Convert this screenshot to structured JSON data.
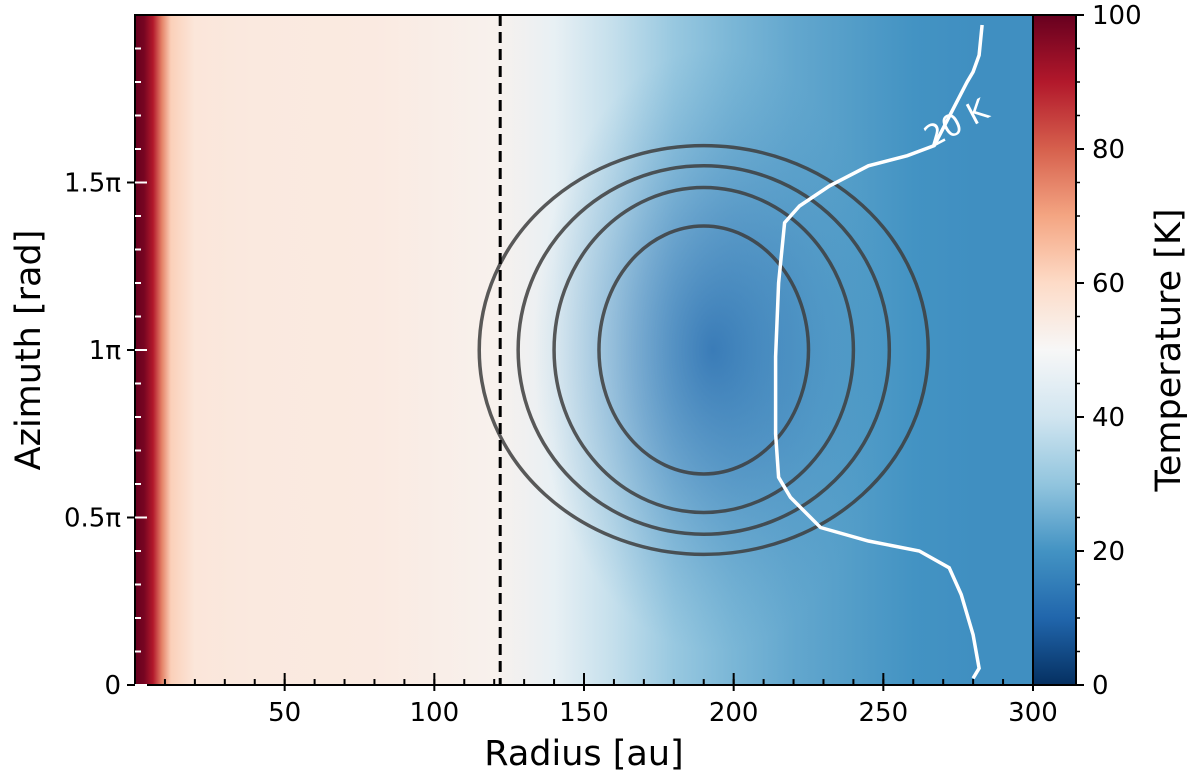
{
  "chart_data": {
    "type": "heatmap",
    "title": "",
    "xlabel": "Radius [au]",
    "ylabel": "Azimuth [rad]",
    "xlim": [
      0,
      300
    ],
    "ylim": [
      0,
      2
    ],
    "ylim_unit": "pi",
    "x_ticks": [
      {
        "value": 50,
        "label": "50"
      },
      {
        "value": 100,
        "label": "100"
      },
      {
        "value": 150,
        "label": "150"
      },
      {
        "value": 200,
        "label": "200"
      },
      {
        "value": 250,
        "label": "250"
      },
      {
        "value": 300,
        "label": "300"
      }
    ],
    "y_ticks": [
      {
        "value": 0,
        "label": "0"
      },
      {
        "value": 0.5,
        "label": "0.5π"
      },
      {
        "value": 1,
        "label": "1π"
      },
      {
        "value": 1.5,
        "label": "1.5π"
      }
    ],
    "temperature_profile": {
      "radius_au": [
        0,
        3,
        6,
        9,
        12,
        20,
        40,
        80,
        120,
        140,
        160,
        180,
        200,
        220,
        240,
        260,
        280,
        300
      ],
      "temperature_K": [
        100,
        98,
        90,
        75,
        62,
        56,
        55,
        54.5,
        52,
        46,
        38,
        31,
        27,
        24,
        22,
        20,
        19,
        19
      ]
    },
    "cold_spot": {
      "center_radius_au": 193,
      "center_azimuth_pi": 1.0,
      "depth_K": 12
    },
    "colorbar": {
      "label": "Temperature [K]",
      "range": [
        0,
        100
      ],
      "ticks": [
        0,
        20,
        40,
        60,
        80,
        100
      ],
      "colormap": "RdBu_r"
    },
    "vertical_line": {
      "x": 122,
      "style": "dashed",
      "color": "#000000"
    },
    "contours": [
      {
        "center_radius_au": 190,
        "center_azimuth_pi": 1.0,
        "radius_au": 35,
        "radius_azimuth_pi": 0.74
      },
      {
        "center_radius_au": 190,
        "center_azimuth_pi": 1.0,
        "radius_au": 50,
        "radius_azimuth_pi": 0.97
      },
      {
        "center_radius_au": 190,
        "center_azimuth_pi": 1.0,
        "radius_au": 62,
        "radius_azimuth_pi": 1.1
      },
      {
        "center_radius_au": 190,
        "center_azimuth_pi": 1.0,
        "radius_au": 75,
        "radius_azimuth_pi": 1.22
      }
    ],
    "isotherm": {
      "label": "20 K",
      "level": 20,
      "color": "#ffffff",
      "points": [
        {
          "x": 283,
          "y": 1.97
        },
        {
          "x": 282,
          "y": 1.88
        },
        {
          "x": 280,
          "y": 1.83
        },
        {
          "x": 278,
          "y": 1.8
        },
        {
          "x": 267,
          "y": 1.61
        },
        {
          "x": 258,
          "y": 1.58
        },
        {
          "x": 245,
          "y": 1.55
        },
        {
          "x": 232,
          "y": 1.49
        },
        {
          "x": 222,
          "y": 1.43
        },
        {
          "x": 217,
          "y": 1.38
        },
        {
          "x": 215,
          "y": 1.2
        },
        {
          "x": 214,
          "y": 0.98
        },
        {
          "x": 214,
          "y": 0.75
        },
        {
          "x": 215,
          "y": 0.62
        },
        {
          "x": 219,
          "y": 0.56
        },
        {
          "x": 229,
          "y": 0.47
        },
        {
          "x": 245,
          "y": 0.43
        },
        {
          "x": 262,
          "y": 0.4
        },
        {
          "x": 272,
          "y": 0.35
        },
        {
          "x": 276,
          "y": 0.27
        },
        {
          "x": 280,
          "y": 0.15
        },
        {
          "x": 282,
          "y": 0.05
        },
        {
          "x": 280,
          "y": 0.02
        }
      ]
    }
  }
}
